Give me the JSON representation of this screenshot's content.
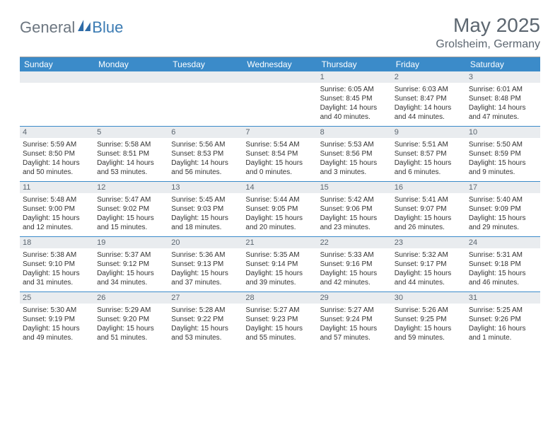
{
  "brand": {
    "general": "General",
    "blue": "Blue"
  },
  "title": "May 2025",
  "location": "Grolsheim, Germany",
  "day_headers": [
    "Sunday",
    "Monday",
    "Tuesday",
    "Wednesday",
    "Thursday",
    "Friday",
    "Saturday"
  ],
  "colors": {
    "header_bg": "#3b8bc9",
    "header_text": "#ffffff",
    "daynum_bg": "#e9ecef",
    "row_border": "#3b8bc9",
    "title_color": "#5c6670"
  },
  "weeks": [
    [
      null,
      null,
      null,
      null,
      {
        "n": "1",
        "sr": "Sunrise: 6:05 AM",
        "ss": "Sunset: 8:45 PM",
        "dl1": "Daylight: 14 hours",
        "dl2": "and 40 minutes."
      },
      {
        "n": "2",
        "sr": "Sunrise: 6:03 AM",
        "ss": "Sunset: 8:47 PM",
        "dl1": "Daylight: 14 hours",
        "dl2": "and 44 minutes."
      },
      {
        "n": "3",
        "sr": "Sunrise: 6:01 AM",
        "ss": "Sunset: 8:48 PM",
        "dl1": "Daylight: 14 hours",
        "dl2": "and 47 minutes."
      }
    ],
    [
      {
        "n": "4",
        "sr": "Sunrise: 5:59 AM",
        "ss": "Sunset: 8:50 PM",
        "dl1": "Daylight: 14 hours",
        "dl2": "and 50 minutes."
      },
      {
        "n": "5",
        "sr": "Sunrise: 5:58 AM",
        "ss": "Sunset: 8:51 PM",
        "dl1": "Daylight: 14 hours",
        "dl2": "and 53 minutes."
      },
      {
        "n": "6",
        "sr": "Sunrise: 5:56 AM",
        "ss": "Sunset: 8:53 PM",
        "dl1": "Daylight: 14 hours",
        "dl2": "and 56 minutes."
      },
      {
        "n": "7",
        "sr": "Sunrise: 5:54 AM",
        "ss": "Sunset: 8:54 PM",
        "dl1": "Daylight: 15 hours",
        "dl2": "and 0 minutes."
      },
      {
        "n": "8",
        "sr": "Sunrise: 5:53 AM",
        "ss": "Sunset: 8:56 PM",
        "dl1": "Daylight: 15 hours",
        "dl2": "and 3 minutes."
      },
      {
        "n": "9",
        "sr": "Sunrise: 5:51 AM",
        "ss": "Sunset: 8:57 PM",
        "dl1": "Daylight: 15 hours",
        "dl2": "and 6 minutes."
      },
      {
        "n": "10",
        "sr": "Sunrise: 5:50 AM",
        "ss": "Sunset: 8:59 PM",
        "dl1": "Daylight: 15 hours",
        "dl2": "and 9 minutes."
      }
    ],
    [
      {
        "n": "11",
        "sr": "Sunrise: 5:48 AM",
        "ss": "Sunset: 9:00 PM",
        "dl1": "Daylight: 15 hours",
        "dl2": "and 12 minutes."
      },
      {
        "n": "12",
        "sr": "Sunrise: 5:47 AM",
        "ss": "Sunset: 9:02 PM",
        "dl1": "Daylight: 15 hours",
        "dl2": "and 15 minutes."
      },
      {
        "n": "13",
        "sr": "Sunrise: 5:45 AM",
        "ss": "Sunset: 9:03 PM",
        "dl1": "Daylight: 15 hours",
        "dl2": "and 18 minutes."
      },
      {
        "n": "14",
        "sr": "Sunrise: 5:44 AM",
        "ss": "Sunset: 9:05 PM",
        "dl1": "Daylight: 15 hours",
        "dl2": "and 20 minutes."
      },
      {
        "n": "15",
        "sr": "Sunrise: 5:42 AM",
        "ss": "Sunset: 9:06 PM",
        "dl1": "Daylight: 15 hours",
        "dl2": "and 23 minutes."
      },
      {
        "n": "16",
        "sr": "Sunrise: 5:41 AM",
        "ss": "Sunset: 9:07 PM",
        "dl1": "Daylight: 15 hours",
        "dl2": "and 26 minutes."
      },
      {
        "n": "17",
        "sr": "Sunrise: 5:40 AM",
        "ss": "Sunset: 9:09 PM",
        "dl1": "Daylight: 15 hours",
        "dl2": "and 29 minutes."
      }
    ],
    [
      {
        "n": "18",
        "sr": "Sunrise: 5:38 AM",
        "ss": "Sunset: 9:10 PM",
        "dl1": "Daylight: 15 hours",
        "dl2": "and 31 minutes."
      },
      {
        "n": "19",
        "sr": "Sunrise: 5:37 AM",
        "ss": "Sunset: 9:12 PM",
        "dl1": "Daylight: 15 hours",
        "dl2": "and 34 minutes."
      },
      {
        "n": "20",
        "sr": "Sunrise: 5:36 AM",
        "ss": "Sunset: 9:13 PM",
        "dl1": "Daylight: 15 hours",
        "dl2": "and 37 minutes."
      },
      {
        "n": "21",
        "sr": "Sunrise: 5:35 AM",
        "ss": "Sunset: 9:14 PM",
        "dl1": "Daylight: 15 hours",
        "dl2": "and 39 minutes."
      },
      {
        "n": "22",
        "sr": "Sunrise: 5:33 AM",
        "ss": "Sunset: 9:16 PM",
        "dl1": "Daylight: 15 hours",
        "dl2": "and 42 minutes."
      },
      {
        "n": "23",
        "sr": "Sunrise: 5:32 AM",
        "ss": "Sunset: 9:17 PM",
        "dl1": "Daylight: 15 hours",
        "dl2": "and 44 minutes."
      },
      {
        "n": "24",
        "sr": "Sunrise: 5:31 AM",
        "ss": "Sunset: 9:18 PM",
        "dl1": "Daylight: 15 hours",
        "dl2": "and 46 minutes."
      }
    ],
    [
      {
        "n": "25",
        "sr": "Sunrise: 5:30 AM",
        "ss": "Sunset: 9:19 PM",
        "dl1": "Daylight: 15 hours",
        "dl2": "and 49 minutes."
      },
      {
        "n": "26",
        "sr": "Sunrise: 5:29 AM",
        "ss": "Sunset: 9:20 PM",
        "dl1": "Daylight: 15 hours",
        "dl2": "and 51 minutes."
      },
      {
        "n": "27",
        "sr": "Sunrise: 5:28 AM",
        "ss": "Sunset: 9:22 PM",
        "dl1": "Daylight: 15 hours",
        "dl2": "and 53 minutes."
      },
      {
        "n": "28",
        "sr": "Sunrise: 5:27 AM",
        "ss": "Sunset: 9:23 PM",
        "dl1": "Daylight: 15 hours",
        "dl2": "and 55 minutes."
      },
      {
        "n": "29",
        "sr": "Sunrise: 5:27 AM",
        "ss": "Sunset: 9:24 PM",
        "dl1": "Daylight: 15 hours",
        "dl2": "and 57 minutes."
      },
      {
        "n": "30",
        "sr": "Sunrise: 5:26 AM",
        "ss": "Sunset: 9:25 PM",
        "dl1": "Daylight: 15 hours",
        "dl2": "and 59 minutes."
      },
      {
        "n": "31",
        "sr": "Sunrise: 5:25 AM",
        "ss": "Sunset: 9:26 PM",
        "dl1": "Daylight: 16 hours",
        "dl2": "and 1 minute."
      }
    ]
  ]
}
